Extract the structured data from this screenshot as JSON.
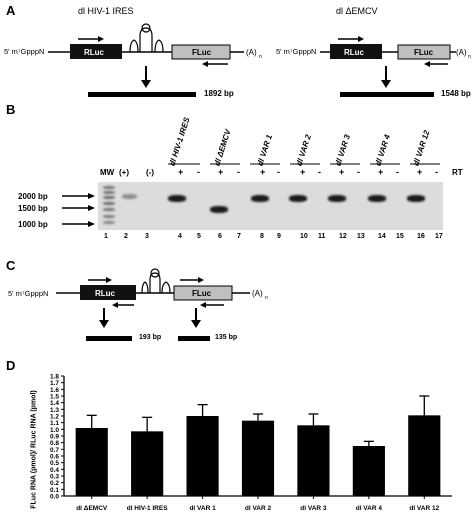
{
  "panelA": {
    "letter": "A",
    "left": {
      "title": "dl HIV-1 IRES",
      "cap": "5' m⁷GpppN",
      "rluc": "RLuc",
      "fluc": "FLuc",
      "polyA": "(A)",
      "polyA_sub": "n",
      "size": "1892 bp"
    },
    "right": {
      "title": "dl ΔEMCV",
      "cap": "5' m⁷GpppN",
      "rluc": "RLuc",
      "fluc": "FLuc",
      "polyA": "(A)",
      "polyA_sub": "n",
      "size": "1548 bp"
    }
  },
  "panelB": {
    "letter": "B",
    "headers": [
      "dl HIV-1 IRES",
      "dl ΔEMCV",
      "dl VAR 1",
      "dl VAR 2",
      "dl VAR 3",
      "dl VAR 4",
      "dl VAR 12"
    ],
    "rt_label": "RT",
    "mw": "MW",
    "pos": "(+)",
    "neg": "(-)",
    "signs": [
      "+",
      "-",
      "+",
      "-",
      "+",
      "-",
      "+",
      "-",
      "+",
      "-",
      "+",
      "-",
      "+",
      "-"
    ],
    "markers": [
      "2000 bp",
      "1500 bp",
      "1000 bp"
    ],
    "lanes": [
      "1",
      "2",
      "3",
      "4",
      "5",
      "6",
      "7",
      "8",
      "9",
      "10",
      "11",
      "12",
      "13",
      "14",
      "15",
      "16",
      "17"
    ]
  },
  "panelC": {
    "letter": "C",
    "cap": "5' m⁷GpppN",
    "rluc": "RLuc",
    "fluc": "FLuc",
    "polyA": "(A)",
    "polyA_sub": "n",
    "size_left": "193 bp",
    "size_right": "135 bp"
  },
  "panelD": {
    "letter": "D",
    "ylabel": "FLuc RNA (pmol)/ RLuc RNA (pmol)",
    "chart_data": {
      "type": "bar",
      "categories": [
        "dl ΔEMCV",
        "dl HIV-1 IRES",
        "dl VAR 1",
        "dl VAR 2",
        "dl VAR 3",
        "dl VAR 4",
        "dl VAR 12"
      ],
      "values": [
        1.02,
        0.97,
        1.2,
        1.13,
        1.06,
        0.75,
        1.21
      ],
      "errors": [
        0.19,
        0.21,
        0.17,
        0.1,
        0.17,
        0.07,
        0.29
      ],
      "ylim": [
        0,
        1.8
      ],
      "yticks": [
        "0.0",
        "0.1",
        "0.2",
        "0.3",
        "0.4",
        "0.5",
        "0.6",
        "0.7",
        "0.8",
        "0.9",
        "1.0",
        "1.1",
        "1.2",
        "1.3",
        "1.4",
        "1.5",
        "1.6",
        "1.7",
        "1.8"
      ],
      "xlabel": "",
      "ylabel": "FLuc RNA (pmol)/ RLuc RNA (pmol)",
      "bar_color": "#000000"
    }
  }
}
